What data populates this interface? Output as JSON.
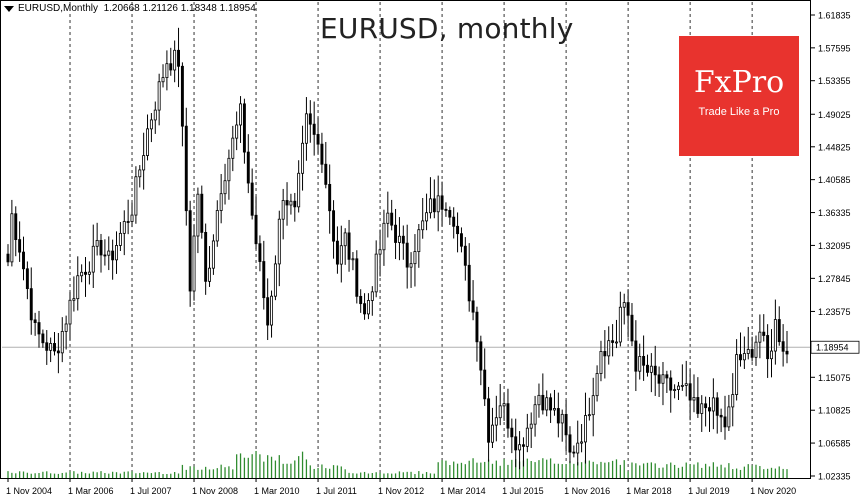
{
  "info": {
    "symbol_timeframe": "EURUSD,Monthly",
    "ohlc": "1.20668 1.21126 1.18348 1.18954"
  },
  "title": "EURUSD, monthly",
  "logo": {
    "name": "FxPro",
    "tagline": "Trade Like a Pro"
  },
  "colors": {
    "candle": "#000000",
    "volume": "#2e8b2e",
    "grid": "#000000",
    "price_line": "#b0b0b0"
  },
  "chart_data": {
    "type": "candlestick",
    "symbol": "EURUSD",
    "timeframe": "Monthly",
    "start": "2004-11",
    "period_months": 194,
    "current_price": 1.18954,
    "y_ticks": [
      1.61835,
      1.57595,
      1.53355,
      1.49025,
      1.44825,
      1.40585,
      1.36335,
      1.32095,
      1.27845,
      1.23575,
      1.15075,
      1.10825,
      1.06585,
      1.02335
    ],
    "x_ticks": [
      "1 Nov 2004",
      "1 Mar 2006",
      "1 Jul 2007",
      "1 Nov 2008",
      "1 Mar 2010",
      "1 Jul 2011",
      "1 Nov 2012",
      "1 Mar 2014",
      "1 Jul 2015",
      "1 Nov 2016",
      "1 Mar 2018",
      "1 Jul 2019",
      "1 Nov 2020"
    ],
    "ylim": [
      1.01335,
      1.62835
    ],
    "grid": "vertical dashed",
    "key_points": [
      {
        "date": "2004-11",
        "price": 1.3
      },
      {
        "date": "2004-12",
        "price": 1.36
      },
      {
        "date": "2005-02",
        "price": 1.32
      },
      {
        "date": "2005-06",
        "price": 1.21
      },
      {
        "date": "2005-11",
        "price": 1.18
      },
      {
        "date": "2006-01",
        "price": 1.21
      },
      {
        "date": "2006-05",
        "price": 1.28
      },
      {
        "date": "2006-11",
        "price": 1.32
      },
      {
        "date": "2007-01",
        "price": 1.3
      },
      {
        "date": "2007-07",
        "price": 1.37
      },
      {
        "date": "2007-11",
        "price": 1.47
      },
      {
        "date": "2008-04",
        "price": 1.56
      },
      {
        "date": "2008-07",
        "price": 1.56
      },
      {
        "date": "2008-10",
        "price": 1.27
      },
      {
        "date": "2008-12",
        "price": 1.39
      },
      {
        "date": "2009-02",
        "price": 1.27
      },
      {
        "date": "2009-06",
        "price": 1.4
      },
      {
        "date": "2009-11",
        "price": 1.49
      },
      {
        "date": "2010-02",
        "price": 1.36
      },
      {
        "date": "2010-06",
        "price": 1.22
      },
      {
        "date": "2010-10",
        "price": 1.39
      },
      {
        "date": "2011-01",
        "price": 1.36
      },
      {
        "date": "2011-04",
        "price": 1.48
      },
      {
        "date": "2011-08",
        "price": 1.44
      },
      {
        "date": "2011-12",
        "price": 1.3
      },
      {
        "date": "2012-02",
        "price": 1.33
      },
      {
        "date": "2012-07",
        "price": 1.23
      },
      {
        "date": "2013-01",
        "price": 1.36
      },
      {
        "date": "2013-06",
        "price": 1.3
      },
      {
        "date": "2013-12",
        "price": 1.37
      },
      {
        "date": "2014-04",
        "price": 1.38
      },
      {
        "date": "2014-06",
        "price": 1.36
      },
      {
        "date": "2014-12",
        "price": 1.21
      },
      {
        "date": "2015-03",
        "price": 1.08
      },
      {
        "date": "2015-06",
        "price": 1.12
      },
      {
        "date": "2015-11",
        "price": 1.06
      },
      {
        "date": "2016-04",
        "price": 1.13
      },
      {
        "date": "2016-10",
        "price": 1.09
      },
      {
        "date": "2016-12",
        "price": 1.05
      },
      {
        "date": "2017-04",
        "price": 1.09
      },
      {
        "date": "2017-08",
        "price": 1.19
      },
      {
        "date": "2017-12",
        "price": 1.2
      },
      {
        "date": "2018-01",
        "price": 1.24
      },
      {
        "date": "2018-03",
        "price": 1.23
      },
      {
        "date": "2018-05",
        "price": 1.17
      },
      {
        "date": "2018-12",
        "price": 1.14
      },
      {
        "date": "2019-06",
        "price": 1.13
      },
      {
        "date": "2019-09",
        "price": 1.1
      },
      {
        "date": "2019-12",
        "price": 1.12
      },
      {
        "date": "2020-02",
        "price": 1.1
      },
      {
        "date": "2020-04",
        "price": 1.09
      },
      {
        "date": "2020-06",
        "price": 1.12
      },
      {
        "date": "2020-07",
        "price": 1.18
      },
      {
        "date": "2020-09",
        "price": 1.17
      },
      {
        "date": "2020-11",
        "price": 1.19
      },
      {
        "date": "2021-01",
        "price": 1.21
      },
      {
        "date": "2021-03",
        "price": 1.17
      },
      {
        "date": "2021-05",
        "price": 1.22
      },
      {
        "date": "2021-08",
        "price": 1.18
      }
    ]
  }
}
